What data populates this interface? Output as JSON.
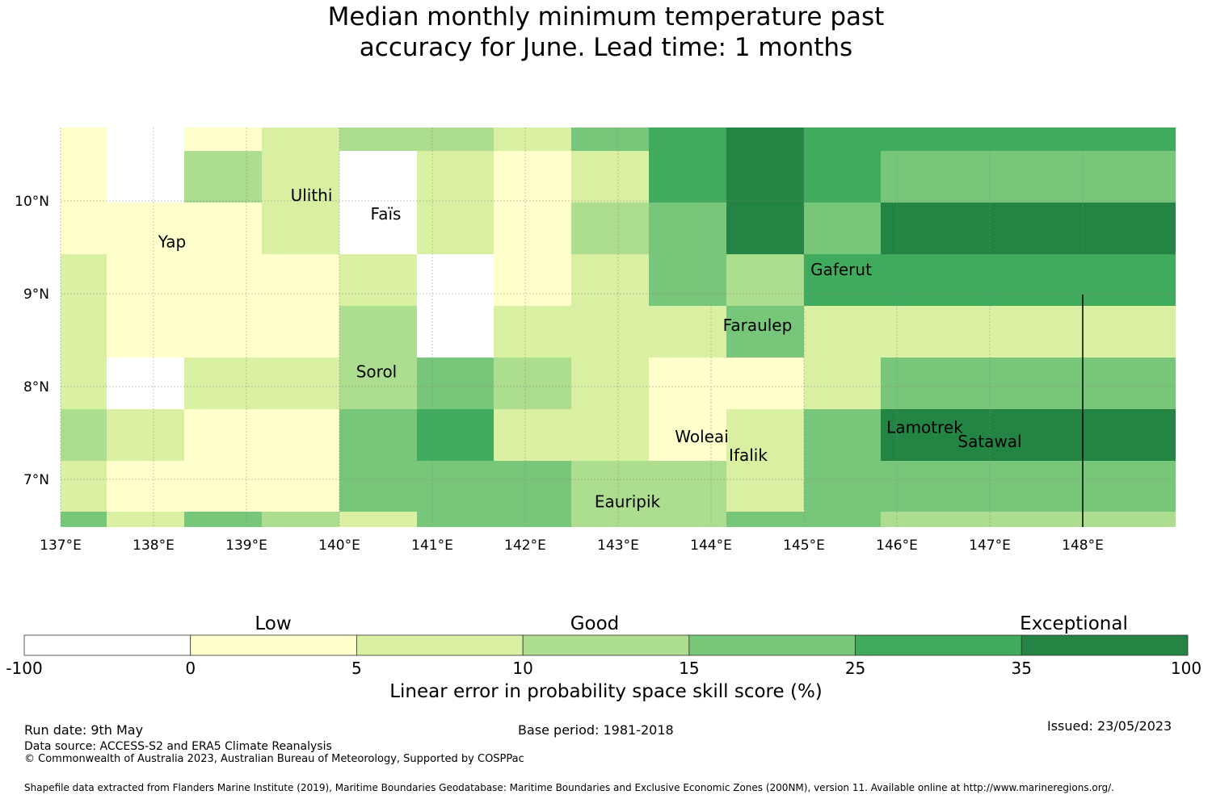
{
  "title_line1": "Median monthly minimum temperature past",
  "title_line2": "accuracy for June. Lead time: 1 months",
  "map": {
    "lon_labels": [
      "137°E",
      "138°E",
      "139°E",
      "140°E",
      "141°E",
      "142°E",
      "143°E",
      "144°E",
      "145°E",
      "146°E",
      "147°E",
      "148°E"
    ],
    "lat_labels": [
      "10°N",
      "9°N",
      "8°N",
      "7°N"
    ],
    "places": [
      {
        "name": "Ulithi",
        "lon": 139.7,
        "lat": 10.0
      },
      {
        "name": "Faïs",
        "lon": 140.5,
        "lat": 9.8
      },
      {
        "name": "Yap",
        "lon": 138.2,
        "lat": 9.5
      },
      {
        "name": "Gaferut",
        "lon": 145.4,
        "lat": 9.2
      },
      {
        "name": "Faraulep",
        "lon": 144.5,
        "lat": 8.6
      },
      {
        "name": "Sorol",
        "lon": 140.4,
        "lat": 8.1
      },
      {
        "name": "Woleai",
        "lon": 143.9,
        "lat": 7.4
      },
      {
        "name": "Ifalik",
        "lon": 144.4,
        "lat": 7.2
      },
      {
        "name": "Lamotrek",
        "lon": 146.3,
        "lat": 7.5
      },
      {
        "name": "Satawal",
        "lon": 147.0,
        "lat": 7.35
      },
      {
        "name": "Eauripik",
        "lon": 143.1,
        "lat": 6.7
      }
    ]
  },
  "colorbar": {
    "ticks": [
      "-100",
      "0",
      "5",
      "10",
      "15",
      "25",
      "35",
      "100"
    ],
    "colors": [
      "#ffffff",
      "#ffffcc",
      "#d9f0a3",
      "#addd8e",
      "#78c679",
      "#41ab5d",
      "#238443"
    ],
    "category_labels": [
      "Low",
      "Good",
      "Exceptional"
    ],
    "title": "Linear error in probability space skill score (%)"
  },
  "grid_cells": {
    "note_legend": "0=-100..0, 1=0..5, 2=5..10, 3=10..15, 4=15..25, 5=25..35, 6=35..100",
    "rows": [
      [
        1,
        0,
        1,
        2,
        3,
        3,
        2,
        4,
        5,
        6,
        5,
        5
      ],
      [
        1,
        0,
        3,
        2,
        0,
        2,
        1,
        2,
        5,
        6,
        5,
        4
      ],
      [
        1,
        1,
        1,
        2,
        0,
        2,
        1,
        3,
        4,
        6,
        4,
        6
      ],
      [
        2,
        1,
        1,
        1,
        2,
        0,
        1,
        2,
        4,
        3,
        5,
        5
      ],
      [
        2,
        1,
        1,
        1,
        3,
        0,
        2,
        2,
        2,
        4,
        2,
        2
      ],
      [
        2,
        0,
        2,
        2,
        3,
        4,
        3,
        2,
        1,
        1,
        2,
        4
      ],
      [
        3,
        2,
        1,
        1,
        4,
        5,
        2,
        2,
        1,
        2,
        4,
        6
      ],
      [
        2,
        1,
        1,
        1,
        4,
        4,
        4,
        3,
        3,
        2,
        4,
        4
      ],
      [
        4,
        2,
        4,
        3,
        2,
        4,
        4,
        3,
        3,
        4,
        4,
        3
      ]
    ]
  },
  "footer": {
    "run_date": "Run date: 9th May",
    "base_period": "Base period: 1981-2018",
    "issued": "Issued: 23/05/2023",
    "data_source": "Data source: ACCESS-S2 and ERA5 Climate Reanalysis",
    "copyright": "© Commonwealth of Australia 2023, Australian Bureau of Meteorology, Supported by COSPPac",
    "shapefile": "Shapefile data extracted from Flanders Marine Institute (2019), Maritime Boundaries Geodatabase: Maritime Boundaries and Exclusive Economic Zones (200NM), version 11. Available online at http://www.marineregions.org/."
  }
}
